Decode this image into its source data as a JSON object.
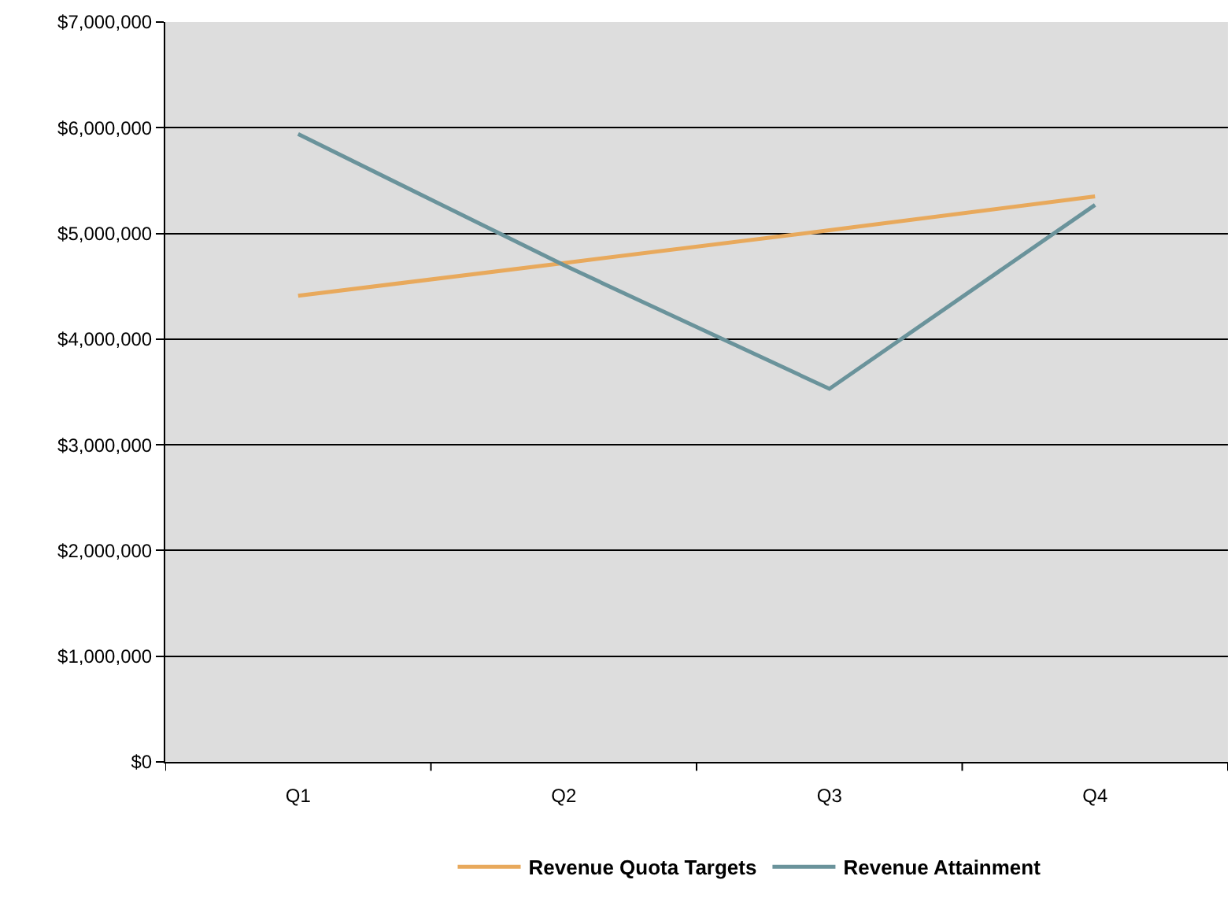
{
  "chart_data": {
    "type": "line",
    "categories": [
      "Q1",
      "Q2",
      "Q3",
      "Q4"
    ],
    "series": [
      {
        "name": "Revenue Quota Targets",
        "color": "#e8a95c",
        "values": [
          4410000,
          4720000,
          5030000,
          5350000
        ]
      },
      {
        "name": "Revenue Attainment",
        "color": "#6a939b",
        "values": [
          5940000,
          4700000,
          3530000,
          5270000
        ]
      }
    ],
    "ylim": [
      0,
      7000000
    ],
    "yticks": [
      {
        "value": 0,
        "label": "$0"
      },
      {
        "value": 1000000,
        "label": "$1,000,000"
      },
      {
        "value": 2000000,
        "label": "$2,000,000"
      },
      {
        "value": 3000000,
        "label": "$3,000,000"
      },
      {
        "value": 4000000,
        "label": "$4,000,000"
      },
      {
        "value": 5000000,
        "label": "$5,000,000"
      },
      {
        "value": 6000000,
        "label": "$6,000,000"
      },
      {
        "value": 7000000,
        "label": "$7,000,000"
      }
    ],
    "grid": "y",
    "legend": "bottom",
    "marker": "none",
    "line_style": "solid"
  }
}
